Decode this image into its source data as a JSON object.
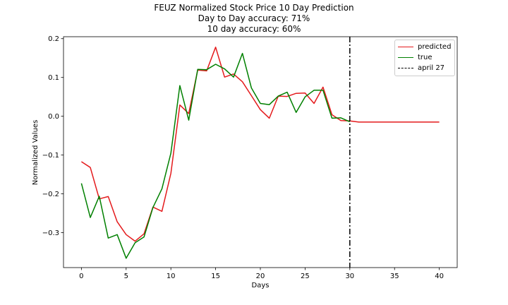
{
  "title_lines": [
    "FEUZ Normalized Stock Price 10 Day Prediction",
    "Day to Day accuracy: 71%",
    "10 day accuracy: 60%"
  ],
  "colors": {
    "predicted": "#e41a1c",
    "true": "#008000",
    "vline": "#000000"
  },
  "chart_data": {
    "type": "line",
    "title": "FEUZ Normalized Stock Price 10 Day Prediction\nDay to Day accuracy: 71%\n10 day accuracy: 60%",
    "xlabel": "Days",
    "ylabel": "Normalized Values",
    "xlim": [
      -2,
      42
    ],
    "ylim": [
      -0.39,
      0.205
    ],
    "xticks": [
      0,
      5,
      10,
      15,
      20,
      25,
      30,
      35,
      40
    ],
    "yticks": [
      -0.3,
      -0.2,
      -0.1,
      0.0,
      0.1,
      0.2
    ],
    "ytick_labels": [
      "−0.3",
      "−0.2",
      "−0.1",
      "0.0",
      "0.1",
      "0.2"
    ],
    "legend_position": "top-right",
    "grid": false,
    "series": [
      {
        "name": "predicted",
        "color": "#e41a1c",
        "x": [
          0,
          1,
          2,
          3,
          4,
          5,
          6,
          7,
          8,
          9,
          10,
          11,
          12,
          13,
          14,
          15,
          16,
          17,
          18,
          19,
          20,
          21,
          22,
          23,
          24,
          25,
          26,
          27,
          28,
          29,
          30,
          31,
          32,
          33,
          34,
          35,
          36,
          37,
          38,
          39,
          40
        ],
        "y": [
          -0.117,
          -0.132,
          -0.213,
          -0.207,
          -0.272,
          -0.305,
          -0.322,
          -0.303,
          -0.234,
          -0.245,
          -0.147,
          0.029,
          0.007,
          0.119,
          0.117,
          0.178,
          0.101,
          0.109,
          0.089,
          0.053,
          0.017,
          -0.005,
          0.052,
          0.051,
          0.059,
          0.06,
          0.033,
          0.075,
          0.004,
          -0.011,
          -0.012,
          -0.015,
          -0.015,
          -0.015,
          -0.015,
          -0.015,
          -0.015,
          -0.015,
          -0.015,
          -0.015,
          -0.015
        ]
      },
      {
        "name": "true",
        "color": "#008000",
        "x": [
          0,
          1,
          2,
          3,
          4,
          5,
          6,
          7,
          8,
          9,
          10,
          11,
          12,
          13,
          14,
          15,
          16,
          17,
          18,
          19,
          20,
          21,
          22,
          23,
          24,
          25,
          26,
          27,
          28,
          29,
          30
        ],
        "y": [
          -0.173,
          -0.261,
          -0.206,
          -0.314,
          -0.305,
          -0.366,
          -0.326,
          -0.311,
          -0.235,
          -0.187,
          -0.095,
          0.079,
          -0.01,
          0.121,
          0.12,
          0.134,
          0.122,
          0.101,
          0.162,
          0.073,
          0.033,
          0.03,
          0.052,
          0.062,
          0.01,
          0.05,
          0.067,
          0.067,
          -0.005,
          -0.004,
          -0.014
        ]
      }
    ],
    "vlines": [
      {
        "name": "april 27",
        "x": 30,
        "style": "dashdot",
        "color": "#000000"
      }
    ]
  }
}
